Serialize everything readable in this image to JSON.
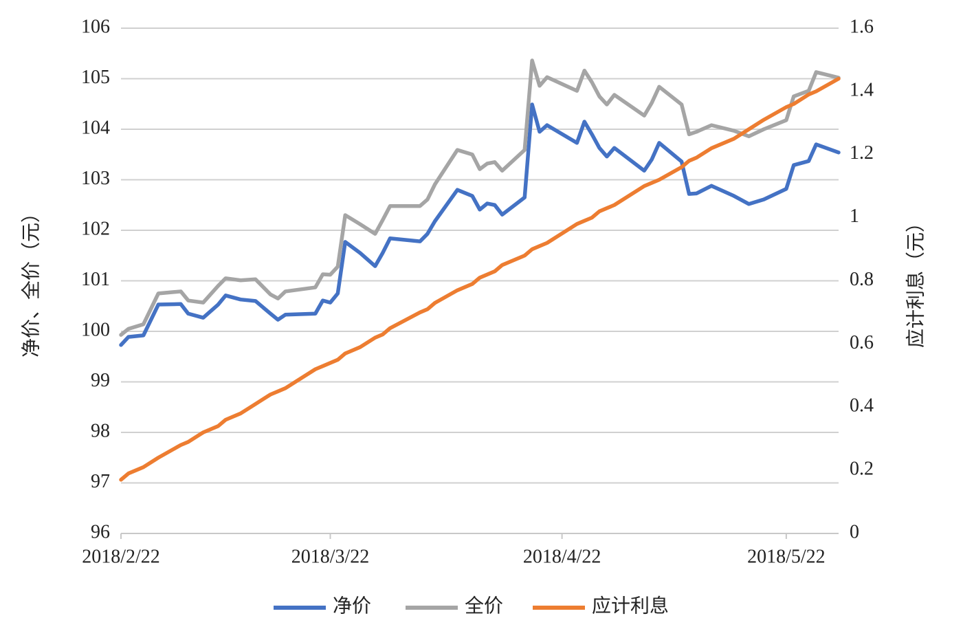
{
  "chart_data": {
    "type": "line",
    "x": [
      "2018/2/22",
      "2018/2/23",
      "2018/2/25",
      "2018/2/27",
      "2018/3/2",
      "2018/3/3",
      "2018/3/5",
      "2018/3/7",
      "2018/3/8",
      "2018/3/10",
      "2018/3/12",
      "2018/3/14",
      "2018/3/15",
      "2018/3/16",
      "2018/3/20",
      "2018/3/21",
      "2018/3/22",
      "2018/3/23",
      "2018/3/24",
      "2018/3/26",
      "2018/3/28",
      "2018/3/29",
      "2018/3/30",
      "2018/4/3",
      "2018/4/4",
      "2018/4/5",
      "2018/4/8",
      "2018/4/10",
      "2018/4/11",
      "2018/4/12",
      "2018/4/13",
      "2018/4/14",
      "2018/4/17",
      "2018/4/18",
      "2018/4/19",
      "2018/4/20",
      "2018/4/24",
      "2018/4/25",
      "2018/4/26",
      "2018/4/27",
      "2018/4/28",
      "2018/4/29",
      "2018/5/3",
      "2018/5/4",
      "2018/5/5",
      "2018/5/8",
      "2018/5/9",
      "2018/5/10",
      "2018/5/12",
      "2018/5/15",
      "2018/5/17",
      "2018/5/19",
      "2018/5/22",
      "2018/5/23",
      "2018/5/25",
      "2018/5/26",
      "2018/5/29"
    ],
    "series": [
      {
        "name": "净价",
        "color": "#4472c4",
        "values": [
          99.73,
          99.89,
          99.92,
          100.53,
          100.54,
          100.35,
          100.27,
          100.53,
          100.71,
          100.63,
          100.6,
          100.35,
          100.23,
          100.33,
          100.35,
          100.61,
          100.57,
          100.75,
          101.77,
          101.55,
          101.29,
          101.55,
          101.84,
          101.78,
          101.93,
          102.18,
          102.8,
          102.68,
          102.41,
          102.53,
          102.5,
          102.31,
          102.65,
          104.49,
          103.95,
          104.08,
          103.73,
          104.15,
          103.9,
          103.63,
          103.46,
          103.63,
          103.18,
          103.4,
          103.73,
          103.36,
          102.72,
          102.73,
          102.88,
          102.68,
          102.52,
          102.61,
          102.82,
          103.29,
          103.37,
          103.7,
          103.54
        ]
      },
      {
        "name": "全价",
        "color": "#a5a5a5",
        "values": [
          99.93,
          100.05,
          100.14,
          100.75,
          100.79,
          100.61,
          100.57,
          100.9,
          101.05,
          101.01,
          101.03,
          100.73,
          100.65,
          100.79,
          100.87,
          101.13,
          101.12,
          101.28,
          102.3,
          102.12,
          101.93,
          102.2,
          102.48,
          102.48,
          102.61,
          102.91,
          103.59,
          103.5,
          103.21,
          103.32,
          103.35,
          103.18,
          103.59,
          105.36,
          104.86,
          105.03,
          104.76,
          105.16,
          104.93,
          104.65,
          104.49,
          104.68,
          104.27,
          104.52,
          104.84,
          104.49,
          103.9,
          103.95,
          104.08,
          103.97,
          103.86,
          104.0,
          104.18,
          104.65,
          104.76,
          105.13,
          105.02
        ]
      },
      {
        "name": "应计利息",
        "color": "#ed7d31",
        "axis": "y2",
        "values": [
          0.17,
          0.19,
          0.21,
          0.24,
          0.28,
          0.29,
          0.32,
          0.34,
          0.36,
          0.38,
          0.41,
          0.44,
          0.45,
          0.46,
          0.52,
          0.53,
          0.54,
          0.55,
          0.57,
          0.59,
          0.62,
          0.63,
          0.65,
          0.7,
          0.71,
          0.73,
          0.77,
          0.79,
          0.81,
          0.82,
          0.83,
          0.85,
          0.88,
          0.9,
          0.91,
          0.92,
          0.98,
          0.99,
          1.0,
          1.02,
          1.03,
          1.04,
          1.1,
          1.11,
          1.12,
          1.16,
          1.18,
          1.19,
          1.22,
          1.25,
          1.28,
          1.31,
          1.35,
          1.36,
          1.39,
          1.4,
          1.44
        ]
      }
    ],
    "ylabel": "净价、全价（元）",
    "y2label": "应计利息（元）",
    "xlim": [
      "2018/2/22",
      "2018/5/29"
    ],
    "xticks": [
      "2018/2/22",
      "2018/3/22",
      "2018/4/22",
      "2018/5/22"
    ],
    "ylim": [
      96,
      106
    ],
    "yticks": [
      96,
      97,
      98,
      99,
      100,
      101,
      102,
      103,
      104,
      105,
      106
    ],
    "y2lim": [
      0,
      1.6
    ],
    "y2ticks": [
      0,
      0.2,
      0.4,
      0.6,
      0.8,
      1,
      1.2,
      1.4,
      1.6
    ],
    "grid": true,
    "legend": "bottom"
  }
}
